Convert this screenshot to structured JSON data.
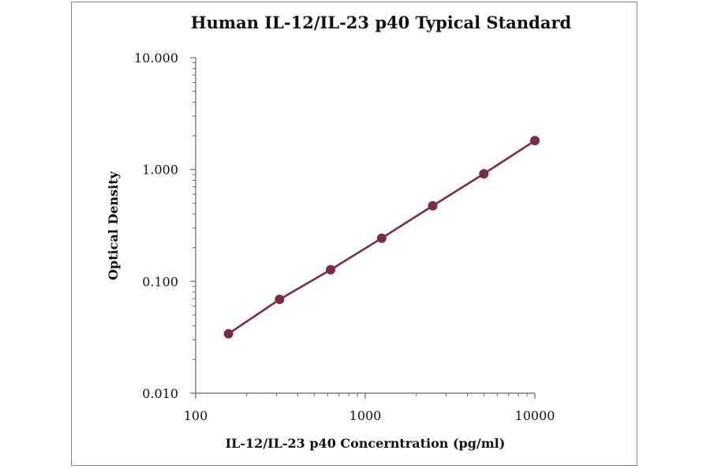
{
  "chart_data": {
    "type": "line",
    "title": "Human IL-12/IL-23 p40 Typical Standard",
    "xlabel": "IL-12/IL-23 p40 Concerntration (pg/ml)",
    "ylabel": "Optical Density",
    "x_scale": "log",
    "y_scale": "log",
    "xlim": [
      100,
      10000
    ],
    "ylim": [
      0.01,
      10
    ],
    "x_ticks": [
      "100",
      "1000",
      "10000"
    ],
    "y_ticks": [
      "10.000",
      "1.000",
      "0.100",
      "0.010"
    ],
    "grid": false,
    "series": [
      {
        "color": "#7a2a4e",
        "x": [
          156.25,
          312.5,
          625,
          1250,
          2500,
          5000,
          10000
        ],
        "y": [
          0.034,
          0.069,
          0.127,
          0.243,
          0.474,
          0.915,
          1.81
        ]
      }
    ]
  }
}
